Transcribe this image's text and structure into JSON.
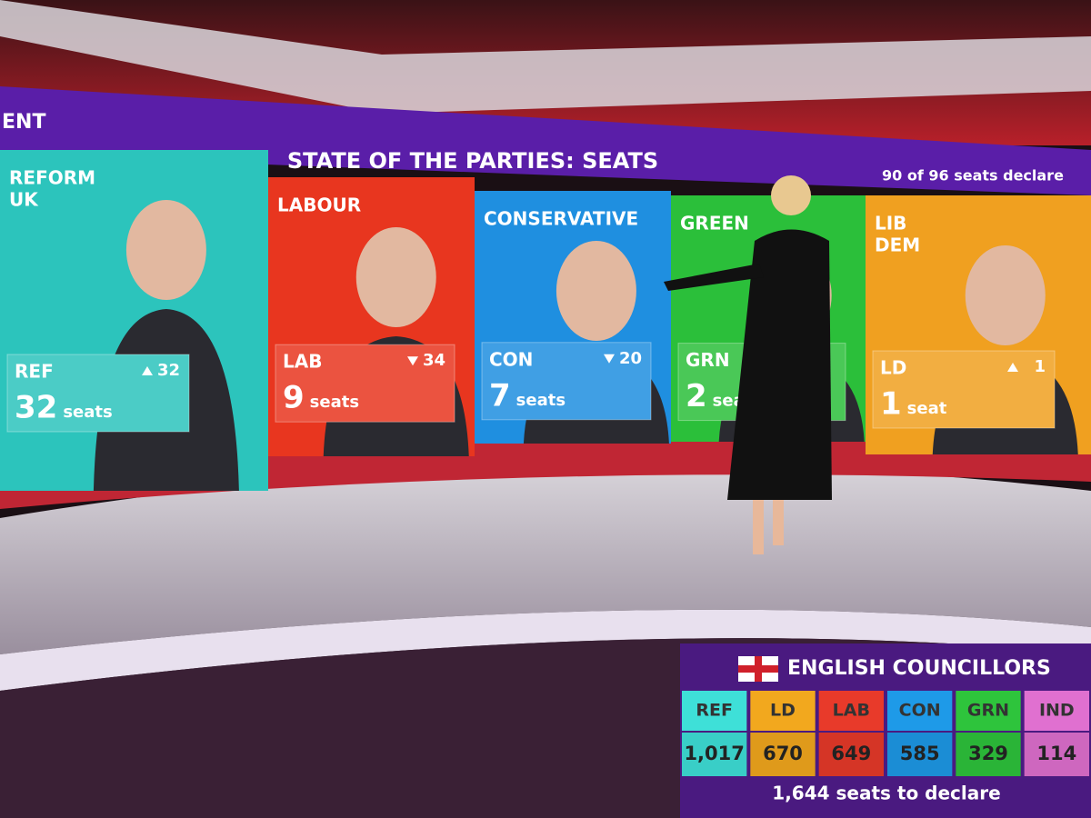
{
  "header": {
    "corner_text": "ENT",
    "title": "STATE OF THE PARTIES: SEATS",
    "status": "90 of 96 seats declare"
  },
  "parties": [
    {
      "name_lines": [
        "REFORM",
        "UK"
      ],
      "abbr": "REF",
      "change": 32,
      "direction": "up",
      "seats": 32,
      "unit": "seats",
      "color": "#2cc4bc"
    },
    {
      "name_lines": [
        "LABOUR"
      ],
      "abbr": "LAB",
      "change": 34,
      "direction": "down",
      "seats": 9,
      "unit": "seats",
      "color": "#e8361f"
    },
    {
      "name_lines": [
        "CONSERVATIVE"
      ],
      "abbr": "CON",
      "change": 20,
      "direction": "down",
      "seats": 7,
      "unit": "seats",
      "color": "#1f8fe0"
    },
    {
      "name_lines": [
        "GREEN"
      ],
      "abbr": "GRN",
      "seats": 2,
      "unit": "seats",
      "color": "#2bbf3a"
    },
    {
      "name_lines": [
        "LIB",
        "DEM"
      ],
      "abbr": "LD",
      "change": 1,
      "direction": "up",
      "seats": 1,
      "unit": "seat",
      "color": "#f0a020"
    }
  ],
  "councillors": {
    "title": "ENGLISH COUNCILLORS",
    "columns": [
      {
        "abbr": "REF",
        "count": "1,017",
        "color": "#3ee0d8"
      },
      {
        "abbr": "LD",
        "count": 670,
        "color": "#f2a81e"
      },
      {
        "abbr": "LAB",
        "count": 649,
        "color": "#e83a2a"
      },
      {
        "abbr": "CON",
        "count": 585,
        "color": "#1e9ae8"
      },
      {
        "abbr": "GRN",
        "count": 329,
        "color": "#2ec43c"
      },
      {
        "abbr": "IND",
        "count": 114,
        "color": "#e070d0"
      }
    ],
    "footer": "1,644 seats to declare"
  }
}
